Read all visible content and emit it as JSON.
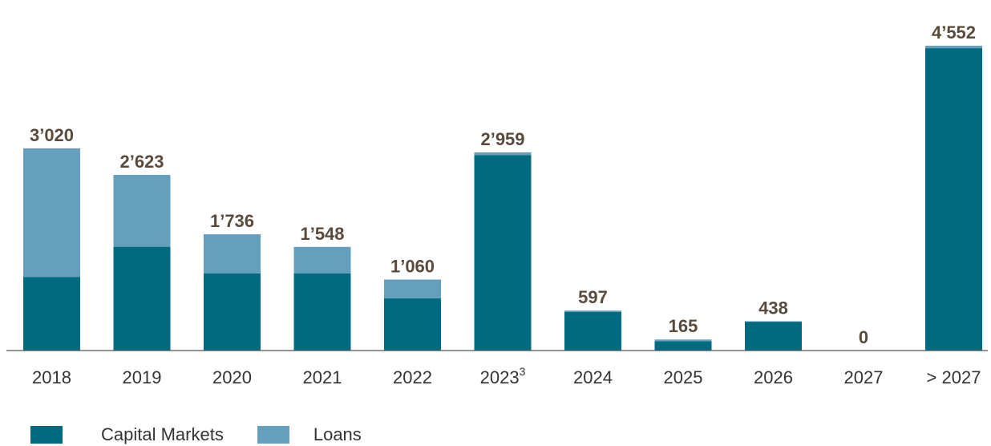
{
  "chart_data": {
    "type": "bar",
    "stacked": true,
    "categories": [
      "2018",
      "2019",
      "2020",
      "2021",
      "2022",
      "2023",
      "2024",
      "2025",
      "2026",
      "2027",
      "> 2027"
    ],
    "superscripts": [
      "",
      "",
      "",
      "",
      "",
      "3",
      "",
      "",
      "",
      "",
      ""
    ],
    "series": [
      {
        "name": "Capital Markets",
        "color": "#006a80",
        "values": [
          1100,
          1550,
          1150,
          1150,
          780,
          2920,
          575,
          140,
          430,
          0,
          4515
        ]
      },
      {
        "name": "Loans",
        "color": "#659fbe",
        "values": [
          1920,
          1073,
          586,
          398,
          280,
          39,
          22,
          25,
          8,
          0,
          37
        ]
      }
    ],
    "totals": [
      "3’020",
      "2’623",
      "1’736",
      "1’548",
      "1’060",
      "2’959",
      "597",
      "165",
      "438",
      "0",
      "4’552"
    ],
    "ylim": [
      0,
      4600
    ],
    "grid": false,
    "legend_position": "bottom-left"
  }
}
